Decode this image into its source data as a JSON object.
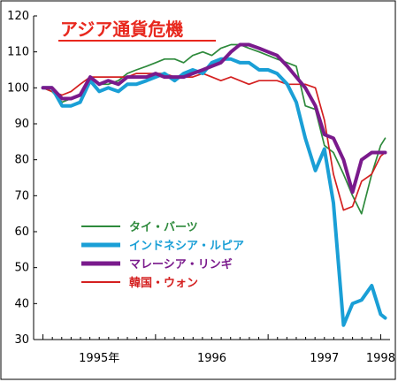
{
  "chart_data": {
    "type": "line",
    "title": "アジア通貨危機",
    "title_color": "#e8281e",
    "xlabel": "",
    "ylabel": "",
    "ylim": [
      30,
      120
    ],
    "yticks": [
      30,
      40,
      50,
      60,
      70,
      80,
      90,
      100,
      110,
      120
    ],
    "xlim": [
      1994.917,
      1998.083
    ],
    "xtick_labels": [
      {
        "x": 1995.5,
        "label": "1995年"
      },
      {
        "x": 1996.5,
        "label": "1996"
      },
      {
        "x": 1997.5,
        "label": "1997"
      },
      {
        "x": 1998.0,
        "label": "1998"
      }
    ],
    "minor_ticks_monthly": true,
    "grid": false,
    "legend_position": "lower-left",
    "series": [
      {
        "name": "タイ・バーツ",
        "color": "#2e8a3c",
        "stroke": "thin",
        "x": [
          1995.0,
          1995.08,
          1995.17,
          1995.25,
          1995.33,
          1995.42,
          1995.5,
          1995.58,
          1995.67,
          1995.75,
          1995.83,
          1995.92,
          1996.0,
          1996.08,
          1996.17,
          1996.25,
          1996.33,
          1996.42,
          1996.5,
          1996.58,
          1996.67,
          1996.75,
          1996.83,
          1996.92,
          1997.0,
          1997.08,
          1997.17,
          1997.25,
          1997.33,
          1997.42,
          1997.5,
          1997.58,
          1997.67,
          1997.75,
          1997.83,
          1997.92,
          1998.0,
          1998.04
        ],
        "values": [
          100,
          99,
          96,
          97,
          98,
          103,
          101,
          101,
          102,
          104,
          105,
          106,
          107,
          108,
          108,
          107,
          109,
          110,
          109,
          111,
          112,
          112,
          111,
          110,
          109,
          108,
          107,
          106,
          95,
          94,
          84,
          82,
          76,
          70,
          65,
          76,
          84,
          86
        ]
      },
      {
        "name": "インドネシア・ルピア",
        "color": "#1a9fd6",
        "stroke": "thick",
        "x": [
          1995.0,
          1995.08,
          1995.17,
          1995.25,
          1995.33,
          1995.42,
          1995.5,
          1995.58,
          1995.67,
          1995.75,
          1995.83,
          1995.92,
          1996.0,
          1996.08,
          1996.17,
          1996.25,
          1996.33,
          1996.42,
          1996.5,
          1996.58,
          1996.67,
          1996.75,
          1996.83,
          1996.92,
          1997.0,
          1997.08,
          1997.17,
          1997.25,
          1997.33,
          1997.42,
          1997.5,
          1997.58,
          1997.67,
          1997.75,
          1997.83,
          1997.92,
          1998.0,
          1998.04
        ],
        "values": [
          100,
          100,
          95,
          95,
          96,
          102,
          99,
          100,
          99,
          101,
          101,
          102,
          103,
          104,
          102,
          104,
          105,
          104,
          107,
          108,
          108,
          107,
          107,
          105,
          105,
          104,
          101,
          96,
          86,
          77,
          83,
          68,
          34,
          40,
          41,
          45,
          37,
          36
        ]
      },
      {
        "name": "マレーシア・リンギ",
        "color": "#7a1a8c",
        "stroke": "thick",
        "x": [
          1995.0,
          1995.08,
          1995.17,
          1995.25,
          1995.33,
          1995.42,
          1995.5,
          1995.58,
          1995.67,
          1995.75,
          1995.83,
          1995.92,
          1996.0,
          1996.08,
          1996.17,
          1996.25,
          1996.33,
          1996.42,
          1996.5,
          1996.58,
          1996.67,
          1996.75,
          1996.83,
          1996.92,
          1997.0,
          1997.08,
          1997.17,
          1997.25,
          1997.33,
          1997.42,
          1997.5,
          1997.58,
          1997.67,
          1997.75,
          1997.83,
          1997.92,
          1998.0,
          1998.04
        ],
        "values": [
          100,
          100,
          97,
          97,
          98,
          103,
          101,
          102,
          101,
          103,
          103,
          103,
          104,
          103,
          103,
          103,
          104,
          105,
          106,
          107,
          110,
          112,
          112,
          111,
          110,
          109,
          106,
          103,
          100,
          95,
          87,
          86,
          80,
          71,
          80,
          82,
          82,
          82
        ]
      },
      {
        "name": "韓国・ウォン",
        "color": "#d42020",
        "stroke": "thin",
        "x": [
          1995.0,
          1995.08,
          1995.17,
          1995.25,
          1995.33,
          1995.42,
          1995.5,
          1995.58,
          1995.67,
          1995.75,
          1995.83,
          1995.92,
          1996.0,
          1996.08,
          1996.17,
          1996.25,
          1996.33,
          1996.42,
          1996.5,
          1996.58,
          1996.67,
          1996.75,
          1996.83,
          1996.92,
          1997.0,
          1997.08,
          1997.17,
          1997.25,
          1997.33,
          1997.42,
          1997.5,
          1997.58,
          1997.67,
          1997.75,
          1997.83,
          1997.92,
          1998.0,
          1998.04
        ],
        "values": [
          100,
          99,
          98,
          99,
          101,
          103,
          103,
          103,
          103,
          103,
          104,
          104,
          104,
          104,
          103,
          103,
          103,
          104,
          103,
          102,
          103,
          102,
          101,
          102,
          102,
          102,
          101,
          101,
          101,
          100,
          91,
          76,
          66,
          67,
          74,
          76,
          81,
          82
        ]
      }
    ]
  }
}
